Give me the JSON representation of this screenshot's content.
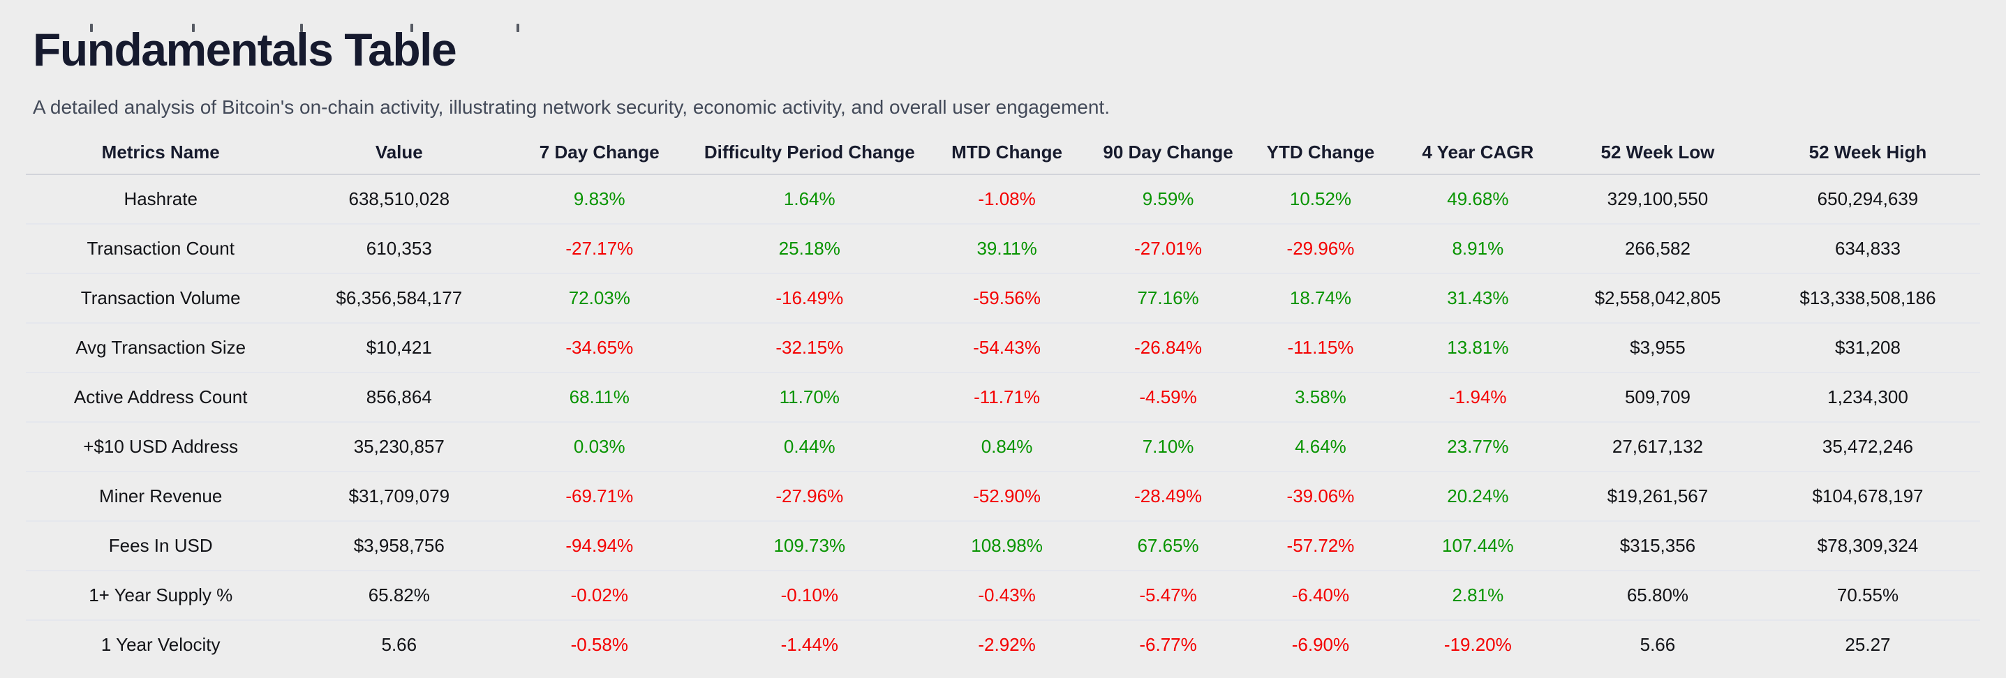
{
  "page": {
    "title": "Fundamentals Table",
    "subtitle": "A detailed analysis of Bitcoin's on-chain activity, illustrating network security, economic activity, and overall user engagement."
  },
  "colors": {
    "positive": "#089400",
    "negative": "#f40000",
    "background": "#ededed",
    "title": "#161a2e"
  },
  "table": {
    "columns": [
      {
        "key": "metric",
        "label": "Metrics Name"
      },
      {
        "key": "value",
        "label": "Value"
      },
      {
        "key": "change-7d",
        "label": "7 Day Change"
      },
      {
        "key": "change-difficulty",
        "label": "Difficulty Period Change"
      },
      {
        "key": "change-mtd",
        "label": "MTD Change"
      },
      {
        "key": "change-90d",
        "label": "90 Day Change"
      },
      {
        "key": "change-ytd",
        "label": "YTD Change"
      },
      {
        "key": "cagr-4y",
        "label": "4 Year CAGR"
      },
      {
        "key": "low-52w",
        "label": "52 Week Low"
      },
      {
        "key": "high-52w",
        "label": "52 Week High"
      }
    ],
    "rows": [
      {
        "cells": [
          {
            "t": "Hashrate"
          },
          {
            "t": "638,510,028"
          },
          {
            "t": "9.83%",
            "c": "pos"
          },
          {
            "t": "1.64%",
            "c": "pos"
          },
          {
            "t": "-1.08%",
            "c": "neg"
          },
          {
            "t": "9.59%",
            "c": "pos"
          },
          {
            "t": "10.52%",
            "c": "pos"
          },
          {
            "t": "49.68%",
            "c": "pos"
          },
          {
            "t": "329,100,550"
          },
          {
            "t": "650,294,639"
          }
        ]
      },
      {
        "cells": [
          {
            "t": "Transaction Count"
          },
          {
            "t": "610,353"
          },
          {
            "t": "-27.17%",
            "c": "neg"
          },
          {
            "t": "25.18%",
            "c": "pos"
          },
          {
            "t": "39.11%",
            "c": "pos"
          },
          {
            "t": "-27.01%",
            "c": "neg"
          },
          {
            "t": "-29.96%",
            "c": "neg"
          },
          {
            "t": "8.91%",
            "c": "pos"
          },
          {
            "t": "266,582"
          },
          {
            "t": "634,833"
          }
        ]
      },
      {
        "cells": [
          {
            "t": "Transaction Volume"
          },
          {
            "t": "$6,356,584,177"
          },
          {
            "t": "72.03%",
            "c": "pos"
          },
          {
            "t": "-16.49%",
            "c": "neg"
          },
          {
            "t": "-59.56%",
            "c": "neg"
          },
          {
            "t": "77.16%",
            "c": "pos"
          },
          {
            "t": "18.74%",
            "c": "pos"
          },
          {
            "t": "31.43%",
            "c": "pos"
          },
          {
            "t": "$2,558,042,805"
          },
          {
            "t": "$13,338,508,186"
          }
        ]
      },
      {
        "cells": [
          {
            "t": "Avg Transaction Size"
          },
          {
            "t": "$10,421"
          },
          {
            "t": "-34.65%",
            "c": "neg"
          },
          {
            "t": "-32.15%",
            "c": "neg"
          },
          {
            "t": "-54.43%",
            "c": "neg"
          },
          {
            "t": "-26.84%",
            "c": "neg"
          },
          {
            "t": "-11.15%",
            "c": "neg"
          },
          {
            "t": "13.81%",
            "c": "pos"
          },
          {
            "t": "$3,955"
          },
          {
            "t": "$31,208"
          }
        ]
      },
      {
        "cells": [
          {
            "t": "Active Address Count"
          },
          {
            "t": "856,864"
          },
          {
            "t": "68.11%",
            "c": "pos"
          },
          {
            "t": "11.70%",
            "c": "pos"
          },
          {
            "t": "-11.71%",
            "c": "neg"
          },
          {
            "t": "-4.59%",
            "c": "neg"
          },
          {
            "t": "3.58%",
            "c": "pos"
          },
          {
            "t": "-1.94%",
            "c": "neg"
          },
          {
            "t": "509,709"
          },
          {
            "t": "1,234,300"
          }
        ]
      },
      {
        "cells": [
          {
            "t": "+$10 USD Address"
          },
          {
            "t": "35,230,857"
          },
          {
            "t": "0.03%",
            "c": "pos"
          },
          {
            "t": "0.44%",
            "c": "pos"
          },
          {
            "t": "0.84%",
            "c": "pos"
          },
          {
            "t": "7.10%",
            "c": "pos"
          },
          {
            "t": "4.64%",
            "c": "pos"
          },
          {
            "t": "23.77%",
            "c": "pos"
          },
          {
            "t": "27,617,132"
          },
          {
            "t": "35,472,246"
          }
        ]
      },
      {
        "cells": [
          {
            "t": "Miner Revenue"
          },
          {
            "t": "$31,709,079"
          },
          {
            "t": "-69.71%",
            "c": "neg"
          },
          {
            "t": "-27.96%",
            "c": "neg"
          },
          {
            "t": "-52.90%",
            "c": "neg"
          },
          {
            "t": "-28.49%",
            "c": "neg"
          },
          {
            "t": "-39.06%",
            "c": "neg"
          },
          {
            "t": "20.24%",
            "c": "pos"
          },
          {
            "t": "$19,261,567"
          },
          {
            "t": "$104,678,197"
          }
        ]
      },
      {
        "cells": [
          {
            "t": "Fees In USD"
          },
          {
            "t": "$3,958,756"
          },
          {
            "t": "-94.94%",
            "c": "neg"
          },
          {
            "t": "109.73%",
            "c": "pos"
          },
          {
            "t": "108.98%",
            "c": "pos"
          },
          {
            "t": "67.65%",
            "c": "pos"
          },
          {
            "t": "-57.72%",
            "c": "neg"
          },
          {
            "t": "107.44%",
            "c": "pos"
          },
          {
            "t": "$315,356"
          },
          {
            "t": "$78,309,324"
          }
        ]
      },
      {
        "cells": [
          {
            "t": "1+ Year Supply %"
          },
          {
            "t": "65.82%"
          },
          {
            "t": "-0.02%",
            "c": "neg"
          },
          {
            "t": "-0.10%",
            "c": "neg"
          },
          {
            "t": "-0.43%",
            "c": "neg"
          },
          {
            "t": "-5.47%",
            "c": "neg"
          },
          {
            "t": "-6.40%",
            "c": "neg"
          },
          {
            "t": "2.81%",
            "c": "pos"
          },
          {
            "t": "65.80%"
          },
          {
            "t": "70.55%"
          }
        ]
      },
      {
        "cells": [
          {
            "t": "1 Year Velocity"
          },
          {
            "t": "5.66"
          },
          {
            "t": "-0.58%",
            "c": "neg"
          },
          {
            "t": "-1.44%",
            "c": "neg"
          },
          {
            "t": "-2.92%",
            "c": "neg"
          },
          {
            "t": "-6.77%",
            "c": "neg"
          },
          {
            "t": "-6.90%",
            "c": "neg"
          },
          {
            "t": "-19.20%",
            "c": "neg"
          },
          {
            "t": "5.66"
          },
          {
            "t": "25.27"
          }
        ]
      }
    ]
  }
}
